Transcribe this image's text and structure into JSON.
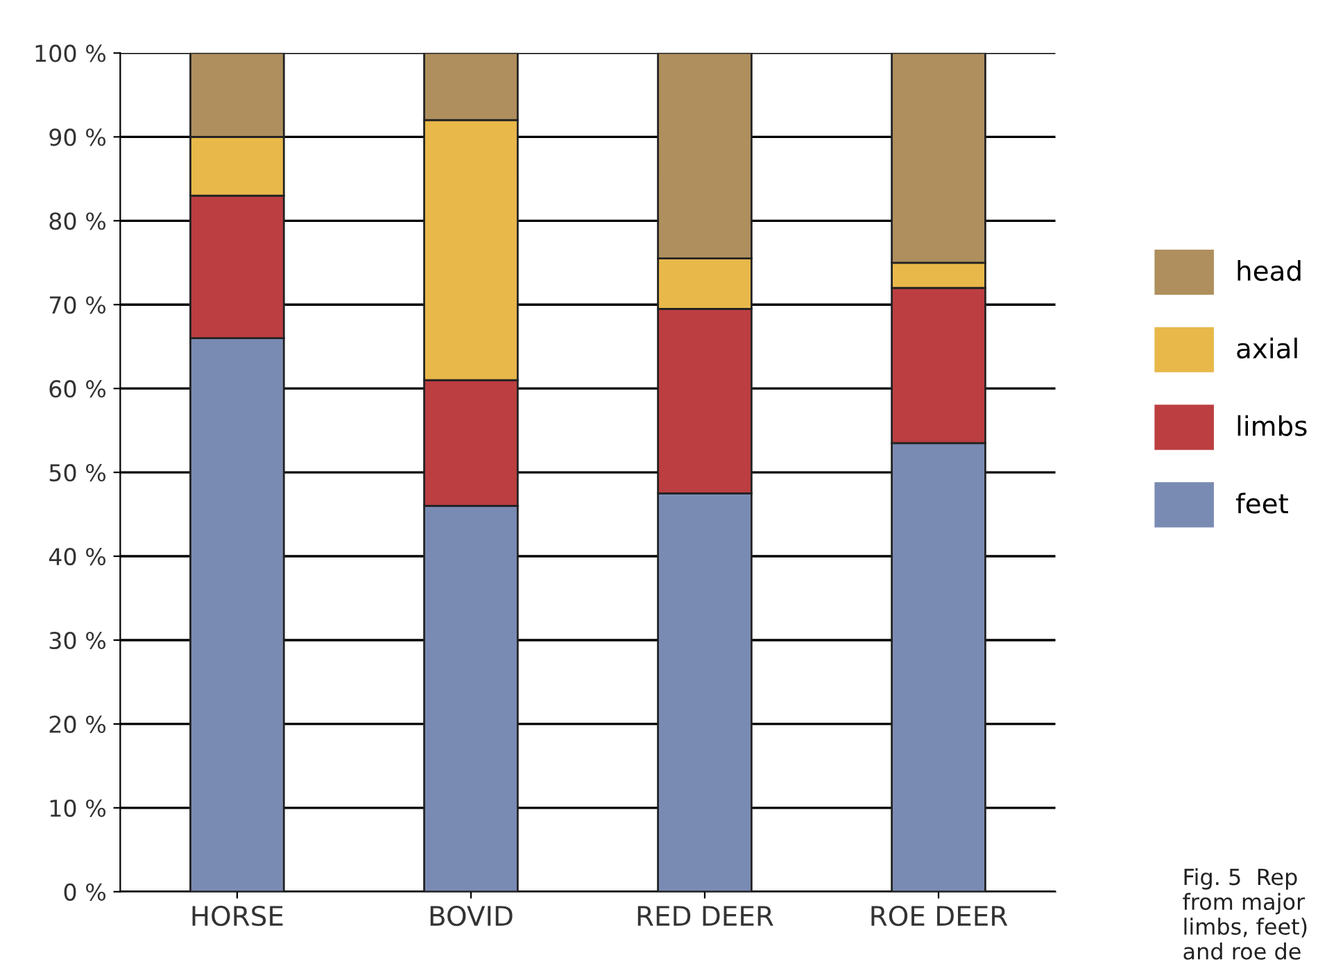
{
  "chart_data": {
    "type": "bar",
    "stacked": true,
    "categories": [
      "HORSE",
      "BOVID",
      "RED DEER",
      "ROE DEER"
    ],
    "series": [
      {
        "name": "feet",
        "color": "#7a8bb3",
        "values": [
          66,
          46,
          47.5,
          53.5
        ]
      },
      {
        "name": "limbs",
        "color": "#bc3e41",
        "values": [
          17,
          15,
          22,
          18.5
        ]
      },
      {
        "name": "axial",
        "color": "#e8b84a",
        "values": [
          7,
          31,
          6,
          3
        ]
      },
      {
        "name": "head",
        "color": "#ae8f5d",
        "values": [
          10,
          8,
          24.5,
          25
        ]
      }
    ],
    "ylim": [
      0,
      100
    ],
    "yticks": [
      {
        "value": 0,
        "label": "0 %"
      },
      {
        "value": 10,
        "label": "10 %"
      },
      {
        "value": 20,
        "label": "20 %"
      },
      {
        "value": 30,
        "label": "30 %"
      },
      {
        "value": 40,
        "label": "40 %"
      },
      {
        "value": 50,
        "label": "50 %"
      },
      {
        "value": 60,
        "label": "60 %"
      },
      {
        "value": 70,
        "label": "70 %"
      },
      {
        "value": 80,
        "label": "80 %"
      },
      {
        "value": 90,
        "label": "90 %"
      },
      {
        "value": 100,
        "label": "100 %"
      }
    ],
    "grid": "y",
    "legend": "right",
    "annotations": [
      "Fig. 5  Rep\nfrom major\nlimbs, feet)\nand roe de"
    ]
  }
}
